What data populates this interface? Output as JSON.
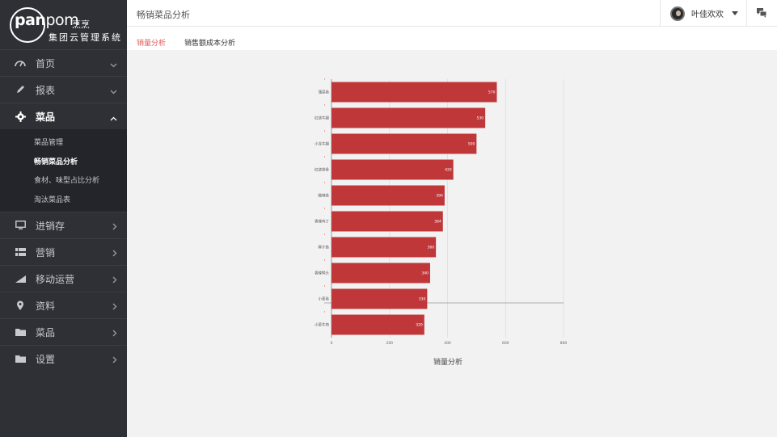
{
  "app": {
    "logo_text_bold": "pan",
    "logo_text_light": "pom",
    "logo_cn": "烹烹",
    "logo_subtitle": "集团云管理系统"
  },
  "header": {
    "page_title": "畅销菜品分析",
    "user_name": "叶佳欢欢"
  },
  "sidebar": {
    "items": [
      {
        "label": "首页",
        "icon": "gauge-icon",
        "chevron": "down"
      },
      {
        "label": "报表",
        "icon": "pencil-icon",
        "chevron": "down"
      },
      {
        "label": "菜品",
        "icon": "gear-icon",
        "chevron": "up",
        "active": true
      },
      {
        "label": "进销存",
        "icon": "monitor-icon",
        "chevron": "right"
      },
      {
        "label": "营销",
        "icon": "grid-icon",
        "chevron": "right"
      },
      {
        "label": "移动运营",
        "icon": "signal-icon",
        "chevron": "right"
      },
      {
        "label": "资料",
        "icon": "location-pin-icon",
        "chevron": "right"
      },
      {
        "label": "菜品",
        "icon": "folder-icon",
        "chevron": "right"
      },
      {
        "label": "设置",
        "icon": "folder-icon",
        "chevron": "right"
      }
    ],
    "submenu": [
      {
        "label": "菜品管理"
      },
      {
        "label": "畅销菜品分析",
        "active": true
      },
      {
        "label": "食材、味型占比分析"
      },
      {
        "label": "淘汰菜品表"
      }
    ]
  },
  "tabs": [
    {
      "label": "销量分析",
      "active": true
    },
    {
      "label": "销售额成本分析",
      "active": false
    }
  ],
  "colors": {
    "bar": "#c0373a",
    "accent": "#e05a5a",
    "sidebar_bg": "#2f3035"
  },
  "chart_data": {
    "type": "bar",
    "orientation": "horizontal",
    "categories": [
      "蒲菜卷",
      "红烧牛腿",
      "小龙牛腿",
      "红烧排骨",
      "酸辣卷",
      "香辣鸡丁",
      "鲜汁鱼",
      "香辣鸭头",
      "小葱卷",
      "小葱牛肉"
    ],
    "values": [
      570,
      530,
      500,
      420,
      390,
      384,
      360,
      340,
      330,
      320
    ],
    "xticks": [
      0,
      200,
      400,
      600,
      800
    ],
    "xlim": [
      0,
      800
    ],
    "xlabel": "销量分析"
  }
}
